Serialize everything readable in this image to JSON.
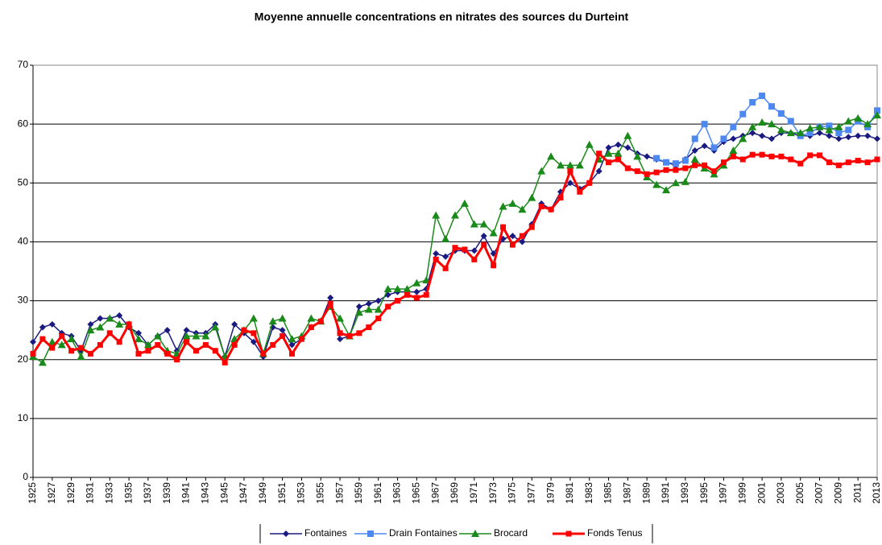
{
  "chart_data": {
    "type": "line",
    "title": "Moyenne annuelle concentrations en nitrates des sources du Durteint",
    "x": [
      1925,
      1926,
      1927,
      1928,
      1929,
      1930,
      1931,
      1932,
      1933,
      1934,
      1935,
      1936,
      1937,
      1938,
      1939,
      1940,
      1941,
      1942,
      1943,
      1944,
      1945,
      1946,
      1947,
      1948,
      1949,
      1950,
      1951,
      1952,
      1953,
      1954,
      1955,
      1956,
      1957,
      1958,
      1959,
      1960,
      1961,
      1962,
      1963,
      1964,
      1965,
      1966,
      1967,
      1968,
      1969,
      1970,
      1971,
      1972,
      1973,
      1974,
      1975,
      1976,
      1977,
      1978,
      1979,
      1980,
      1981,
      1982,
      1983,
      1984,
      1985,
      1986,
      1987,
      1988,
      1989,
      1990,
      1991,
      1992,
      1993,
      1994,
      1995,
      1996,
      1997,
      1998,
      1999,
      2000,
      2001,
      2002,
      2003,
      2004,
      2005,
      2006,
      2007,
      2008,
      2009,
      2010,
      2011,
      2012,
      2013
    ],
    "xlim": [
      1925,
      2013
    ],
    "xticks": [
      1925,
      1927,
      1929,
      1931,
      1933,
      1935,
      1937,
      1939,
      1941,
      1943,
      1945,
      1947,
      1949,
      1951,
      1953,
      1955,
      1957,
      1959,
      1961,
      1963,
      1965,
      1967,
      1969,
      1971,
      1973,
      1975,
      1977,
      1979,
      1981,
      1983,
      1985,
      1987,
      1989,
      1991,
      1993,
      1995,
      1997,
      1999,
      2001,
      2003,
      2005,
      2007,
      2009,
      2011,
      2013
    ],
    "ylim": [
      0,
      70
    ],
    "yticks": [
      0,
      10,
      20,
      30,
      40,
      50,
      60,
      70
    ],
    "grid": true,
    "legend": "bottom",
    "series": [
      {
        "name": "Fontaines",
        "color": "#1a1a80",
        "marker": "diamond",
        "values": [
          23,
          25.5,
          26,
          24.5,
          24,
          21.5,
          26,
          27,
          27,
          27.5,
          25.5,
          24.5,
          22.5,
          24,
          25,
          21.5,
          25,
          24.5,
          24.5,
          26,
          20.5,
          26,
          24.5,
          23,
          20.5,
          25.5,
          25,
          22.5,
          23.5,
          25.5,
          26.5,
          30.5,
          23.5,
          24,
          29,
          29.5,
          30,
          31,
          31.5,
          31.5,
          31.5,
          32,
          38,
          37.5,
          38.5,
          38.5,
          38.5,
          41,
          38,
          40.5,
          41,
          40,
          43,
          46.5,
          45.5,
          48.5,
          50,
          49,
          50,
          52,
          56,
          56.5,
          56,
          55,
          54.5,
          54,
          53.5,
          53,
          54,
          55.5,
          56.3,
          55.5,
          57,
          57.5,
          58,
          58.5,
          58,
          57.5,
          58.5,
          58.5,
          58,
          58,
          58.5,
          58,
          57.5,
          57.8,
          58,
          58,
          57.5
        ]
      },
      {
        "name": "Drain Fontaines",
        "color": "#4d88f0",
        "marker": "square",
        "values": [
          null,
          null,
          null,
          null,
          null,
          null,
          null,
          null,
          null,
          null,
          null,
          null,
          null,
          null,
          null,
          null,
          null,
          null,
          null,
          null,
          null,
          null,
          null,
          null,
          null,
          null,
          null,
          null,
          null,
          null,
          null,
          null,
          null,
          null,
          null,
          null,
          null,
          null,
          null,
          null,
          null,
          null,
          null,
          null,
          null,
          null,
          null,
          null,
          null,
          null,
          null,
          null,
          null,
          null,
          null,
          null,
          null,
          null,
          null,
          null,
          null,
          null,
          null,
          null,
          null,
          54.2,
          53.5,
          53.3,
          53.8,
          57.5,
          60,
          56,
          57.5,
          59.5,
          61.7,
          63.7,
          64.8,
          63,
          61.8,
          60.5,
          58,
          58.5,
          59.5,
          59.7,
          58.5,
          59,
          60.5,
          59.5,
          62.3
        ]
      },
      {
        "name": "Brocard",
        "color": "#1a8a1a",
        "marker": "triangle",
        "values": [
          20.5,
          19.5,
          23,
          22.5,
          23.5,
          20.5,
          25,
          25.5,
          27,
          26,
          26,
          23.5,
          22.5,
          24,
          21.5,
          21,
          24,
          24,
          24,
          25.5,
          20.5,
          23.5,
          25,
          27,
          21,
          26.5,
          27,
          23.5,
          24,
          27,
          26.5,
          29,
          27,
          24,
          28,
          28.5,
          28.5,
          32,
          32,
          32,
          33,
          33.5,
          44.5,
          40.5,
          44.5,
          46.5,
          43,
          43,
          41.5,
          46,
          46.5,
          45.5,
          47.5,
          52,
          54.5,
          53,
          53,
          53,
          56.5,
          54,
          55,
          55,
          58,
          54.5,
          51,
          49.7,
          48.8,
          50,
          50.2,
          54,
          52.5,
          51.5,
          53,
          55.5,
          57.5,
          59.5,
          60.3,
          60,
          59,
          58.5,
          58.5,
          59.3,
          59.5,
          59,
          59.5,
          60.5,
          61,
          60,
          61.5
        ]
      },
      {
        "name": "Fonds Tenus",
        "color": "#ff0000",
        "marker": "square",
        "values": [
          21,
          23.5,
          22,
          24,
          21.5,
          22,
          21,
          22.5,
          24.5,
          23,
          26,
          21,
          21.5,
          22.5,
          21,
          20,
          23,
          21.5,
          22.5,
          21.5,
          19.5,
          22.5,
          25,
          24.5,
          21,
          22.5,
          24,
          21,
          23.5,
          25.5,
          26.5,
          29.5,
          24.5,
          24,
          24.5,
          25.5,
          27,
          29,
          30,
          31,
          30.5,
          31,
          37,
          35.5,
          39,
          38.7,
          37,
          39.5,
          36,
          42.5,
          39.5,
          41,
          42.5,
          46,
          45.5,
          47.5,
          52,
          48.5,
          50,
          55,
          53.5,
          54,
          52.5,
          52,
          51.5,
          51.8,
          52.2,
          52.2,
          52.5,
          53,
          53,
          52,
          53.5,
          54.5,
          54,
          54.8,
          54.8,
          54.5,
          54.5,
          54,
          53.3,
          54.7,
          54.7,
          53.5,
          53,
          53.5,
          53.8,
          53.5,
          54
        ]
      }
    ]
  }
}
